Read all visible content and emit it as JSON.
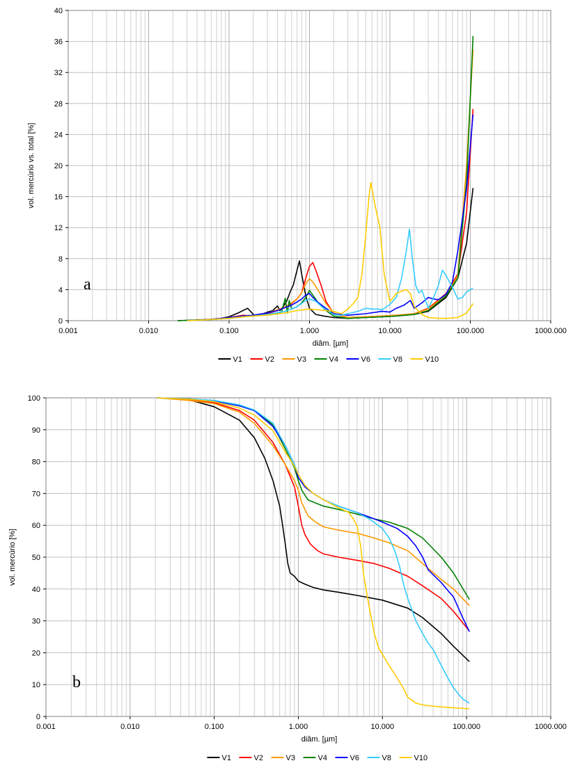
{
  "chart_data": [
    {
      "panel_label": "a",
      "type": "line",
      "xlabel": "diâm. [µm]",
      "ylabel": "vol. mercúrio vs. total [%]",
      "xscale": "log",
      "xlim": [
        0.001,
        1000
      ],
      "ylim": [
        0,
        40
      ],
      "xticks": [
        0.001,
        0.01,
        0.1,
        1,
        10,
        100,
        1000
      ],
      "xtick_labels": [
        "0.001",
        "0.010",
        "0.100",
        "1.000",
        "10.000",
        "100.000",
        "1000.000"
      ],
      "yticks": [
        0,
        4,
        8,
        12,
        16,
        20,
        24,
        28,
        32,
        36,
        40
      ],
      "ytick_labels": [
        "0",
        "4",
        "8",
        "12",
        "16",
        "20",
        "24",
        "28",
        "32",
        "36",
        "40"
      ],
      "grid": true,
      "legend_position": "bottom",
      "series": [
        {
          "name": "V1",
          "color": "#000000",
          "x": [
            0.023,
            0.04,
            0.07,
            0.1,
            0.13,
            0.17,
            0.21,
            0.25,
            0.3,
            0.35,
            0.4,
            0.43,
            0.47,
            0.52,
            0.58,
            0.63,
            0.7,
            0.75,
            0.8,
            0.9,
            1.0,
            1.2,
            1.5,
            2,
            3,
            5,
            8,
            12,
            20,
            30,
            50,
            70,
            90,
            108
          ],
          "y": [
            0,
            0.1,
            0.2,
            0.5,
            1.0,
            1.6,
            0.6,
            0.8,
            1.1,
            1.3,
            1.9,
            1.3,
            1.8,
            2.5,
            3.8,
            4.6,
            6.5,
            7.7,
            6.0,
            3.2,
            1.6,
            0.8,
            0.6,
            0.4,
            0.3,
            0.4,
            0.5,
            0.6,
            0.8,
            1.2,
            3.0,
            5.5,
            10.0,
            17.1
          ]
        },
        {
          "name": "V2",
          "color": "#ff0000",
          "x": [
            0.03,
            0.05,
            0.1,
            0.15,
            0.2,
            0.3,
            0.4,
            0.5,
            0.6,
            0.7,
            0.8,
            0.9,
            1.0,
            1.1,
            1.2,
            1.4,
            1.6,
            2,
            3,
            5,
            8,
            12,
            20,
            30,
            50,
            70,
            90,
            108
          ],
          "y": [
            0,
            0.1,
            0.4,
            0.7,
            0.6,
            0.9,
            1.3,
            1.7,
            2.2,
            2.8,
            3.6,
            5.5,
            7.0,
            7.5,
            6.5,
            4.5,
            2.5,
            0.9,
            0.4,
            0.5,
            0.6,
            0.7,
            0.9,
            1.6,
            3.5,
            6.0,
            14.0,
            27.3
          ]
        },
        {
          "name": "V3",
          "color": "#ff9900",
          "x": [
            0.03,
            0.05,
            0.1,
            0.15,
            0.2,
            0.3,
            0.4,
            0.5,
            0.6,
            0.7,
            0.8,
            0.9,
            1.0,
            1.1,
            1.3,
            1.6,
            2,
            3,
            5,
            8,
            12,
            20,
            30,
            50,
            70,
            90,
            108
          ],
          "y": [
            0,
            0.1,
            0.4,
            0.6,
            0.7,
            1.0,
            1.4,
            1.8,
            2.3,
            2.8,
            3.6,
            4.8,
            5.4,
            5.0,
            3.8,
            2.2,
            1.0,
            0.4,
            0.5,
            0.6,
            0.7,
            0.9,
            1.5,
            3.3,
            5.8,
            20.0,
            35.0
          ]
        },
        {
          "name": "V4",
          "color": "#008000",
          "x": [
            0.023,
            0.05,
            0.1,
            0.15,
            0.2,
            0.3,
            0.4,
            0.45,
            0.5,
            0.53,
            0.56,
            0.6,
            0.7,
            0.8,
            0.9,
            1.0,
            1.1,
            1.3,
            1.6,
            2,
            3,
            5,
            8,
            12,
            20,
            30,
            50,
            70,
            90,
            108
          ],
          "y": [
            0,
            0.1,
            0.3,
            0.5,
            0.6,
            0.8,
            1.0,
            1.1,
            2.9,
            1.0,
            2.6,
            1.5,
            1.8,
            2.3,
            3.0,
            3.9,
            3.3,
            2.2,
            1.3,
            0.6,
            0.3,
            0.4,
            0.5,
            0.6,
            0.8,
            1.3,
            3.2,
            5.5,
            18.0,
            36.7
          ]
        },
        {
          "name": "V6",
          "color": "#0000ff",
          "x": [
            0.03,
            0.05,
            0.1,
            0.15,
            0.2,
            0.3,
            0.4,
            0.5,
            0.6,
            0.7,
            0.8,
            0.9,
            1.0,
            1.1,
            1.3,
            1.6,
            2,
            3,
            5,
            8,
            10,
            12,
            15,
            18,
            20,
            25,
            30,
            35,
            40,
            50,
            60,
            70,
            90,
            108
          ],
          "y": [
            0,
            0.1,
            0.4,
            0.6,
            0.7,
            1.0,
            1.3,
            1.7,
            2.0,
            2.4,
            2.8,
            3.3,
            3.5,
            3.0,
            2.3,
            1.6,
            0.9,
            0.7,
            0.9,
            1.2,
            1.1,
            1.6,
            2.0,
            2.6,
            1.6,
            2.3,
            3.0,
            2.8,
            2.7,
            3.4,
            5.0,
            9.0,
            17.0,
            26.6
          ]
        },
        {
          "name": "V8",
          "color": "#33ccff",
          "x": [
            0.03,
            0.05,
            0.1,
            0.15,
            0.2,
            0.3,
            0.5,
            0.7,
            0.9,
            1.0,
            1.2,
            1.5,
            2,
            2.5,
            3,
            4,
            5,
            6,
            7,
            8,
            10,
            12,
            14,
            16,
            17.5,
            19,
            21,
            23,
            25,
            28,
            30,
            35,
            40,
            45,
            50,
            60,
            70,
            80,
            90,
            108
          ],
          "y": [
            0,
            0.1,
            0.3,
            0.5,
            0.6,
            0.8,
            1.2,
            1.8,
            2.6,
            2.8,
            2.5,
            1.6,
            0.8,
            0.7,
            0.9,
            1.2,
            1.6,
            1.5,
            1.5,
            1.4,
            2.1,
            3.0,
            5.5,
            9.0,
            11.8,
            8.0,
            4.5,
            3.6,
            3.9,
            2.5,
            1.6,
            3.0,
            4.5,
            6.5,
            5.8,
            4.3,
            2.8,
            3.0,
            3.7,
            4.2
          ]
        },
        {
          "name": "V10",
          "color": "#ffcc00",
          "x": [
            0.03,
            0.05,
            0.1,
            0.15,
            0.2,
            0.3,
            0.5,
            0.7,
            1.0,
            1.3,
            1.6,
            2,
            2.5,
            3,
            3.5,
            4,
            4.5,
            5,
            5.5,
            5.8,
            6.5,
            7.5,
            8.5,
            9.5,
            10,
            11,
            12,
            14,
            16,
            18,
            20,
            25,
            30,
            40,
            50,
            70,
            90,
            108
          ],
          "y": [
            0,
            0.1,
            0.3,
            0.5,
            0.6,
            0.7,
            1.0,
            1.3,
            1.5,
            1.4,
            1.3,
            1.2,
            0.9,
            1.5,
            2.2,
            3.0,
            6.0,
            11.0,
            16.0,
            17.8,
            15.0,
            12.0,
            6.0,
            3.5,
            2.5,
            3.0,
            3.5,
            3.8,
            4.0,
            3.5,
            1.8,
            0.8,
            0.4,
            0.3,
            0.3,
            0.4,
            1.0,
            2.2
          ]
        }
      ]
    },
    {
      "panel_label": "b",
      "type": "line",
      "xlabel": "diâm. [µm]",
      "ylabel": "vol. mercúrio [%]",
      "xscale": "log",
      "xlim": [
        0.001,
        1000
      ],
      "ylim": [
        0,
        100
      ],
      "xticks": [
        0.001,
        0.01,
        0.1,
        1,
        10,
        100,
        1000
      ],
      "xtick_labels": [
        "0.001",
        "0.010",
        "0.100",
        "1.000",
        "10.000",
        "100.000",
        "1000.000"
      ],
      "yticks": [
        0,
        10,
        20,
        30,
        40,
        50,
        60,
        70,
        80,
        90,
        100
      ],
      "ytick_labels": [
        "0",
        "10",
        "20",
        "30",
        "40",
        "50",
        "60",
        "70",
        "80",
        "90",
        "100"
      ],
      "grid": true,
      "legend_position": "bottom",
      "series": [
        {
          "name": "V1",
          "color": "#000000",
          "x": [
            0.021,
            0.05,
            0.1,
            0.2,
            0.3,
            0.4,
            0.5,
            0.6,
            0.65,
            0.7,
            0.75,
            0.8,
            0.9,
            1.0,
            1.2,
            1.5,
            2,
            3,
            5,
            10,
            20,
            30,
            50,
            70,
            108
          ],
          "y": [
            100,
            99.4,
            97.2,
            93,
            87.5,
            81,
            74,
            66,
            60,
            54,
            48,
            45,
            44,
            42.5,
            41.5,
            40.5,
            39.7,
            39.0,
            38.0,
            36.5,
            34,
            31,
            26,
            22,
            17.2
          ]
        },
        {
          "name": "V2",
          "color": "#ff0000",
          "x": [
            0.021,
            0.05,
            0.1,
            0.2,
            0.3,
            0.5,
            0.7,
            0.9,
            1.0,
            1.1,
            1.2,
            1.4,
            1.7,
            2,
            3,
            5,
            8,
            12,
            20,
            30,
            50,
            70,
            108
          ],
          "y": [
            100,
            99.5,
            98.5,
            96,
            93,
            86,
            79,
            72,
            66,
            60,
            57,
            54,
            52,
            51,
            50,
            49,
            48,
            46.5,
            44,
            41,
            37,
            33,
            26.8
          ]
        },
        {
          "name": "V3",
          "color": "#ff9900",
          "x": [
            0.021,
            0.05,
            0.1,
            0.2,
            0.3,
            0.5,
            0.7,
            0.9,
            1.0,
            1.1,
            1.3,
            1.6,
            2,
            3,
            5,
            8,
            12,
            20,
            30,
            50,
            70,
            108
          ],
          "y": [
            100,
            99.2,
            98.2,
            95.5,
            92,
            85,
            79,
            74,
            71,
            67,
            63,
            61,
            59.5,
            58.5,
            57.5,
            56,
            54.5,
            52,
            48,
            43,
            40,
            34.8
          ]
        },
        {
          "name": "V4",
          "color": "#008000",
          "x": [
            0.021,
            0.05,
            0.1,
            0.2,
            0.3,
            0.5,
            0.7,
            0.9,
            1.0,
            1.1,
            1.3,
            1.6,
            2,
            3,
            5,
            8,
            12,
            20,
            30,
            50,
            70,
            108
          ],
          "y": [
            100,
            99.6,
            99,
            97.5,
            96,
            91.5,
            84,
            78,
            74,
            71,
            68,
            67,
            66,
            65,
            63.5,
            62,
            61,
            59,
            56,
            50,
            45,
            36.7
          ]
        },
        {
          "name": "V6",
          "color": "#0000ff",
          "x": [
            0.021,
            0.05,
            0.1,
            0.2,
            0.3,
            0.5,
            0.7,
            0.9,
            1.0,
            1.2,
            1.5,
            2,
            3,
            5,
            8,
            10,
            15,
            20,
            25,
            30,
            35,
            40,
            50,
            60,
            70,
            80,
            90,
            108
          ],
          "y": [
            100,
            99.7,
            99,
            97.5,
            96,
            91,
            85,
            79,
            75,
            72,
            70,
            68,
            66,
            64,
            62,
            61,
            59,
            56.5,
            53.5,
            50,
            46,
            44.5,
            42,
            39.5,
            37.5,
            34,
            31,
            26.6
          ]
        },
        {
          "name": "V8",
          "color": "#33ccff",
          "x": [
            0.021,
            0.05,
            0.1,
            0.2,
            0.3,
            0.5,
            0.7,
            0.9,
            1.0,
            1.2,
            1.5,
            2,
            3,
            5,
            7,
            10,
            12,
            14,
            16,
            18,
            20,
            25,
            30,
            35,
            40,
            50,
            60,
            70,
            80,
            90,
            108
          ],
          "y": [
            100,
            99.7,
            99.2,
            97.8,
            96.2,
            92,
            85,
            79,
            76,
            72.5,
            70,
            68,
            66,
            64,
            62,
            59,
            56,
            52,
            47,
            41,
            37,
            30,
            26,
            23,
            21,
            16,
            12,
            9,
            7,
            5.5,
            4.2
          ]
        },
        {
          "name": "V10",
          "color": "#ffcc00",
          "x": [
            0.021,
            0.05,
            0.1,
            0.2,
            0.3,
            0.5,
            0.7,
            0.9,
            1.0,
            1.2,
            1.5,
            2,
            3,
            4,
            4.5,
            5,
            5.5,
            6,
            7,
            8,
            9,
            10,
            12,
            15,
            18,
            20,
            25,
            30,
            40,
            50,
            70,
            108
          ],
          "y": [
            100,
            99.6,
            98.8,
            96.8,
            94.6,
            89.7,
            83,
            78.5,
            76,
            72.5,
            70,
            68,
            65.5,
            64,
            62,
            59.7,
            53.5,
            44,
            34,
            26,
            21.5,
            19.5,
            16,
            12,
            8.5,
            6,
            4.2,
            3.6,
            3.2,
            3.0,
            2.7,
            2.4
          ]
        }
      ]
    }
  ]
}
